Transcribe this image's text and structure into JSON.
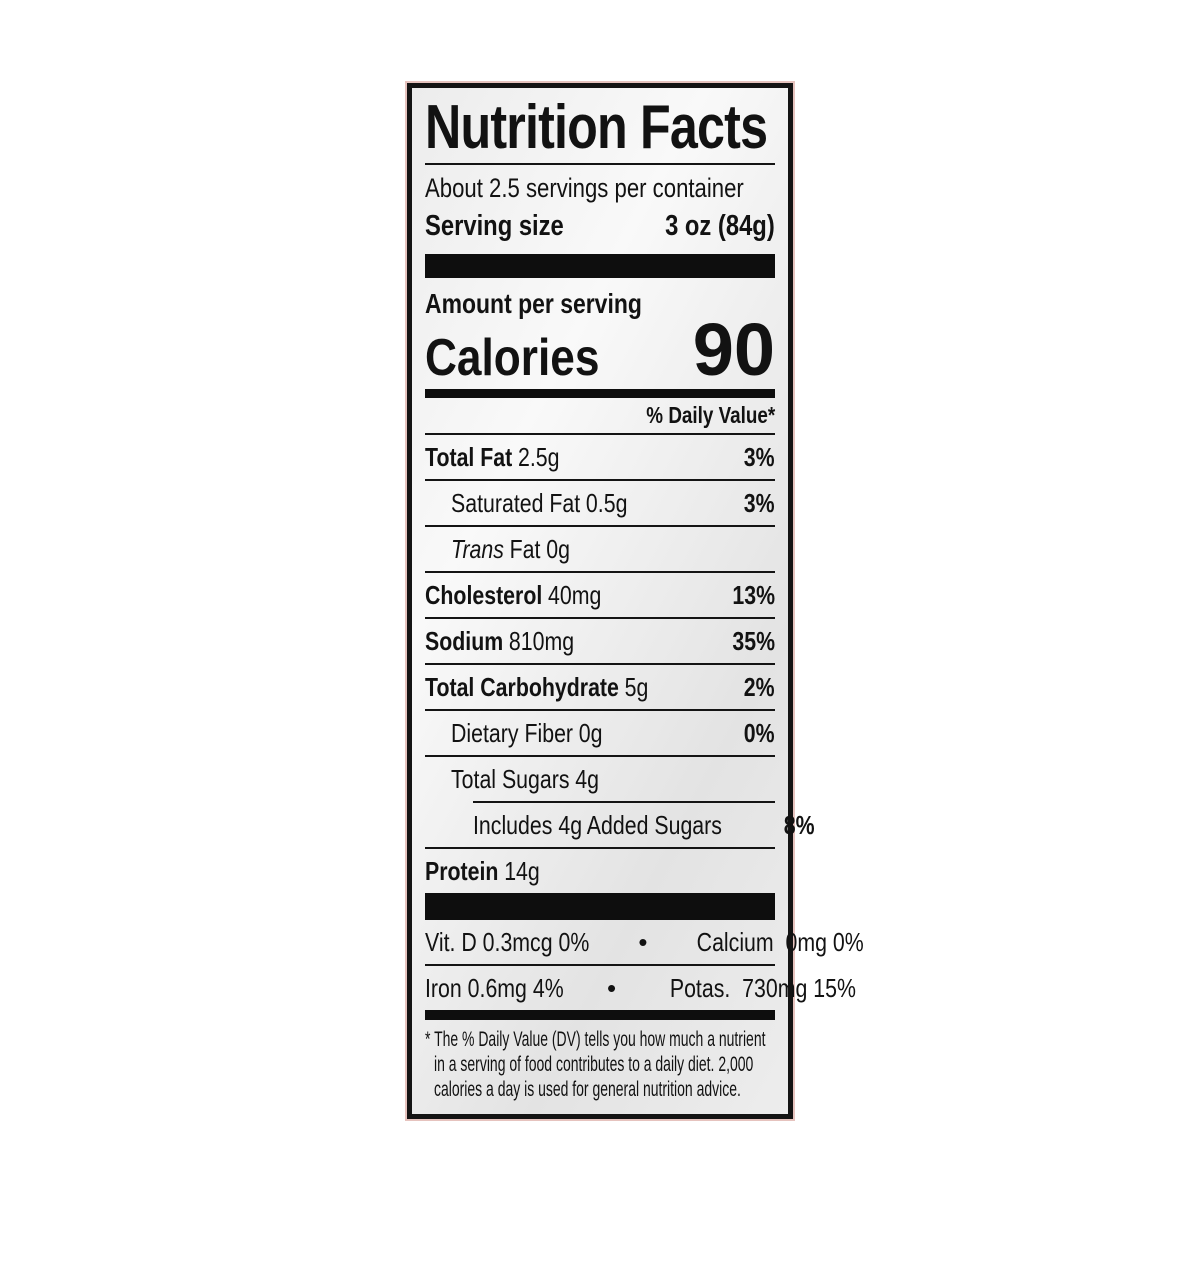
{
  "label": {
    "title": "Nutrition Facts",
    "servings_line": "About 2.5 servings per container",
    "serving_size": {
      "label": "Serving size",
      "value": "3 oz (84g)"
    },
    "amount_per_serving": "Amount per serving",
    "calories": {
      "label": "Calories",
      "value": "90"
    },
    "daily_value_header": "% Daily Value*",
    "nutrients": [
      {
        "name": "Total Fat",
        "amount": "2.5g",
        "dv": "3%"
      },
      {
        "name": "Saturated Fat",
        "amount": "0.5g",
        "dv": "3%"
      },
      {
        "name_italic": "Trans",
        "name": "Fat",
        "amount": "0g",
        "dv": ""
      },
      {
        "name": "Cholesterol",
        "amount": "40mg",
        "dv": "13%"
      },
      {
        "name": "Sodium",
        "amount": "810mg",
        "dv": "35%"
      },
      {
        "name": "Total Carbohydrate",
        "amount": "5g",
        "dv": "2%"
      },
      {
        "name": "Dietary Fiber",
        "amount": "0g",
        "dv": "0%"
      },
      {
        "name": "Total Sugars",
        "amount": "4g",
        "dv": ""
      },
      {
        "name": "Includes 4g Added Sugars",
        "amount": "",
        "dv": "8%"
      },
      {
        "name": "Protein",
        "amount": "14g",
        "dv": ""
      }
    ],
    "bullet": "•",
    "micronutrients": [
      {
        "left": "Vit. D 0.3mcg 0%",
        "right": "Calcium  0mg 0%"
      },
      {
        "left": "Iron 0.6mg 4%",
        "right": "Potas.  730mg 15%"
      }
    ],
    "footnote_lines": [
      "* The % Daily Value (DV) tells you how much a nutrient",
      "in a serving of food contributes to a daily diet. 2,000",
      "calories a day is used for general nutrition advice."
    ],
    "colors": {
      "ink": "#141414",
      "label_background": "#ececec",
      "outer_halo": "#cd877d",
      "page_background": "#ffffff"
    }
  }
}
